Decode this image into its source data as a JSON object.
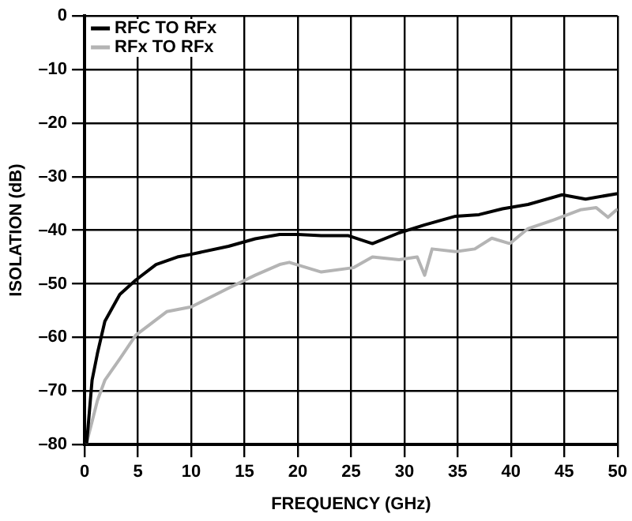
{
  "chart_data": {
    "type": "line",
    "xlabel": "FREQUENCY (GHz)",
    "ylabel": "ISOLATION (dB)",
    "xlim": [
      0,
      50
    ],
    "ylim": [
      -80,
      0
    ],
    "xticks": [
      0,
      5,
      10,
      15,
      20,
      25,
      30,
      35,
      40,
      45,
      50
    ],
    "yticks": [
      {
        "value": -80,
        "label": "–80"
      },
      {
        "value": -70,
        "label": "–70"
      },
      {
        "value": -60,
        "label": "–60"
      },
      {
        "value": -50,
        "label": "–50"
      },
      {
        "value": -40,
        "label": "–40"
      },
      {
        "value": -30,
        "label": "–30"
      },
      {
        "value": -20,
        "label": "–20"
      },
      {
        "value": -10,
        "label": "–10"
      },
      0
    ],
    "grid": true,
    "legend": "top left",
    "marker": "none",
    "line_style": "solid",
    "series": [
      {
        "name": "RFC TO RFx",
        "color": "#000000",
        "x": [
          0.2,
          0.7,
          1.2,
          1.9,
          3.3,
          4.8,
          6.7,
          8.7,
          10,
          13.5,
          16,
          18.3,
          20,
          22.2,
          24.7,
          27,
          29.5,
          31.9,
          34.8,
          37,
          39.2,
          41.6,
          44.8,
          47,
          49.9
        ],
        "values": [
          -79.6,
          -68,
          -63,
          -57,
          -52,
          -49.3,
          -46.4,
          -45,
          -44.5,
          -43,
          -41.6,
          -40.8,
          -40.8,
          -41,
          -41,
          -42.5,
          -40.5,
          -39,
          -37.4,
          -37.1,
          -36,
          -35.2,
          -33.4,
          -34.2,
          -33.2
        ]
      },
      {
        "name": "RFx TO RFx",
        "color": "#b4b4b4",
        "x": [
          0.2,
          1.2,
          1.9,
          3.3,
          4.8,
          7.7,
          10,
          13.5,
          16,
          18.3,
          19.2,
          22.2,
          25.2,
          27,
          29.5,
          31.2,
          31.9,
          32.6,
          34.8,
          36.6,
          38.2,
          39.9,
          41.6,
          44,
          46.5,
          48,
          49.1,
          49.9
        ],
        "values": [
          -79.6,
          -71.8,
          -68,
          -64,
          -59.6,
          -55.2,
          -54.3,
          -50.8,
          -48.4,
          -46.4,
          -46,
          -47.8,
          -47,
          -45,
          -45.5,
          -45,
          -48.4,
          -43.5,
          -44,
          -43.5,
          -41.5,
          -42.5,
          -39.7,
          -38.1,
          -36.2,
          -35.8,
          -37.6,
          -36.2
        ]
      }
    ]
  }
}
